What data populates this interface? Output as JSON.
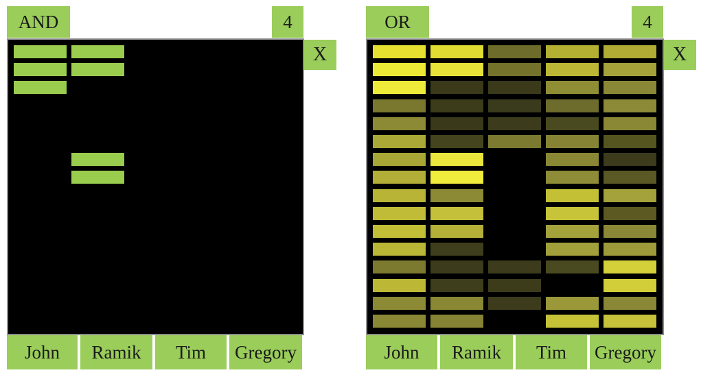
{
  "panels": [
    {
      "operator_label": "AND",
      "count_label": "4",
      "close_label": "X",
      "close_icon": "close-icon",
      "columns": [
        "John",
        "Ramik",
        "Tim",
        "Gregory"
      ],
      "cells": [
        [
          "#9acd4e",
          "#9acd4e",
          null,
          null,
          null
        ],
        [
          "#9acd4e",
          "#9acd4e",
          null,
          null,
          null
        ],
        [
          "#9acd4e",
          null,
          null,
          null,
          null
        ],
        [
          null,
          null,
          null,
          null,
          null
        ],
        [
          null,
          null,
          null,
          null,
          null
        ],
        [
          null,
          null,
          null,
          null,
          null
        ],
        [
          null,
          "#9acd4e",
          null,
          null,
          null
        ],
        [
          null,
          "#9acd4e",
          null,
          null,
          null
        ],
        [
          null,
          null,
          null,
          null,
          null
        ],
        [
          null,
          null,
          null,
          null,
          null
        ],
        [
          null,
          null,
          null,
          null,
          null
        ],
        [
          null,
          null,
          null,
          null,
          null
        ],
        [
          null,
          null,
          null,
          null,
          null
        ],
        [
          null,
          null,
          null,
          null,
          null
        ],
        [
          null,
          null,
          null,
          null,
          null
        ],
        [
          null,
          null,
          null,
          null,
          null
        ]
      ]
    },
    {
      "operator_label": "OR",
      "count_label": "4",
      "close_label": "X",
      "close_icon": "close-icon",
      "columns": [
        "John",
        "Ramik",
        "Tim",
        "Gregory"
      ],
      "cells": [
        [
          "#e6e130",
          "#e0dc32",
          "#6e6c2a",
          "#b4b032",
          "#b0ac34"
        ],
        [
          "#ece836",
          "#e6e238",
          "#75722c",
          "#bcb836",
          "#a6a23a"
        ],
        [
          "#eeea3a",
          "#3a3a1a",
          "#3a3a1a",
          "#908e34",
          "#8a8836"
        ],
        [
          "#7a782e",
          "#3c3c1a",
          "#3a3a1c",
          "#6e6c2c",
          "#8c8a36"
        ],
        [
          "#8c8a34",
          "#3a3a1a",
          "#3c3c1c",
          "#4a4a20",
          "#8a8834"
        ],
        [
          "#aaa836",
          "#44441e",
          "#7c7a30",
          "#868434",
          "#55551f"
        ],
        [
          "#a8a634",
          "#eae63c",
          null,
          "#8a8834",
          "#3c3c1c"
        ],
        [
          "#b2ae38",
          "#f0ec3c",
          null,
          "#8e8c36",
          "#5a5824"
        ],
        [
          "#b8b436",
          "#8c8a34",
          null,
          "#c4c036",
          "#a4a23a"
        ],
        [
          "#c0bc38",
          "#c4c03a",
          null,
          "#c8c43a",
          "#5c5a22"
        ],
        [
          "#c2be36",
          "#b4b038",
          null,
          "#a4a23a",
          "#8a8836"
        ],
        [
          "#bab636",
          "#3e3e1c",
          null,
          "#a2a03a",
          "#9e9c3a"
        ],
        [
          "#7c7a2e",
          "#3c3c1c",
          "#3c3c1c",
          "#4a4a20",
          "#d4d03a"
        ],
        [
          "#bcb836",
          "#3e3e1c",
          "#3c3c1a",
          null,
          "#d2ce3a"
        ],
        [
          "#8c8a34",
          "#8a8834",
          "#3c3c1c",
          "#9a9838",
          "#8a8836"
        ],
        [
          "#8a8834",
          "#868434",
          null,
          "#c6c238",
          "#c6c23a"
        ]
      ]
    }
  ]
}
